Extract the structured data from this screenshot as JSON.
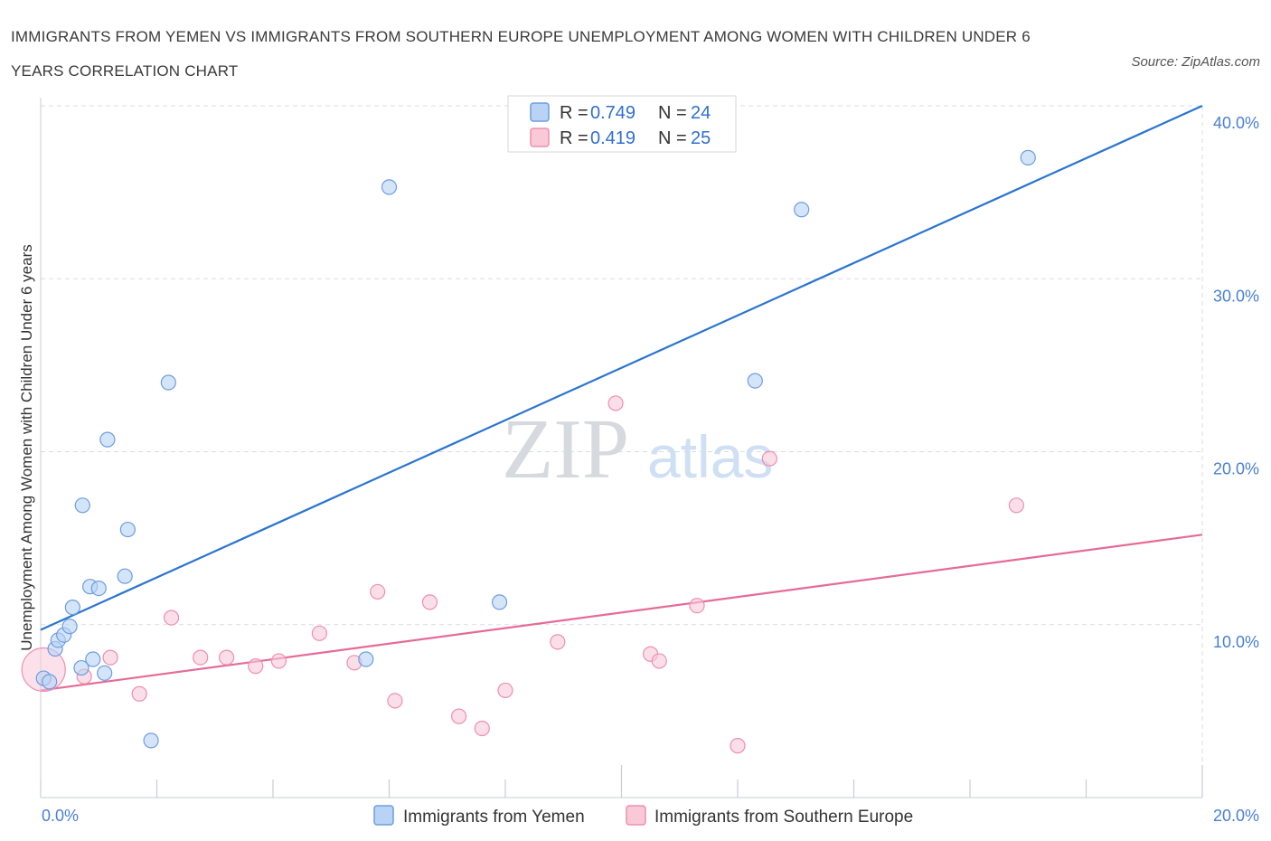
{
  "title": "IMMIGRANTS FROM YEMEN VS IMMIGRANTS FROM SOUTHERN EUROPE UNEMPLOYMENT AMONG WOMEN WITH CHILDREN UNDER 6 YEARS CORRELATION CHART",
  "source": "Source: ZipAtlas.com",
  "watermark": {
    "zip": "ZIP",
    "atlas": "atlas"
  },
  "legend": {
    "r_label": "R =",
    "n_label": "N =",
    "rows": [
      {
        "r": "0.749",
        "n": "24"
      },
      {
        "r": "0.419",
        "n": "25"
      }
    ]
  },
  "colors": {
    "yemen_fill": "#b9d3f5",
    "yemen_stroke": "#6d9de0",
    "yemen_line": "#2a74d0",
    "seu_fill": "#f9c9d8",
    "seu_stroke": "#ee8fae",
    "seu_line": "#e56b97",
    "grid": "#d9dde3",
    "tick_label": "#4a7fd4"
  },
  "chart_data": {
    "type": "scatter",
    "title": "IMMIGRANTS FROM YEMEN VS IMMIGRANTS FROM SOUTHERN EUROPE UNEMPLOYMENT AMONG WOMEN WITH CHILDREN UNDER 6 YEARS CORRELATION CHART",
    "xlabel": "",
    "ylabel": "Unemployment Among Women with Children Under 6 years",
    "xlim": [
      0,
      20
    ],
    "ylim": [
      0,
      40
    ],
    "x_tick_labels": [
      "0.0%",
      "20.0%"
    ],
    "y_tick_labels": [
      "10.0%",
      "20.0%",
      "30.0%",
      "40.0%"
    ],
    "y_ticks": [
      10,
      20,
      30,
      40
    ],
    "grid": true,
    "legend_position": "top-center",
    "series": [
      {
        "name": "Immigrants from Yemen",
        "color": "#6d9de0",
        "points": [
          [
            0.05,
            6.9
          ],
          [
            0.15,
            6.7
          ],
          [
            0.25,
            8.6
          ],
          [
            0.3,
            9.1
          ],
          [
            0.4,
            9.4
          ],
          [
            0.5,
            9.9
          ],
          [
            0.55,
            11.0
          ],
          [
            0.7,
            7.5
          ],
          [
            0.72,
            16.9
          ],
          [
            0.85,
            12.2
          ],
          [
            0.9,
            8.0
          ],
          [
            1.0,
            12.1
          ],
          [
            1.1,
            7.2
          ],
          [
            1.15,
            20.7
          ],
          [
            1.45,
            12.8
          ],
          [
            1.5,
            15.5
          ],
          [
            1.9,
            3.3
          ],
          [
            2.2,
            24.0
          ],
          [
            5.6,
            8.0
          ],
          [
            6.0,
            35.3
          ],
          [
            7.9,
            11.3
          ],
          [
            12.3,
            24.1
          ],
          [
            13.1,
            34.0
          ],
          [
            17.0,
            37.0
          ]
        ],
        "trend": {
          "x": [
            0,
            20
          ],
          "y": [
            9.7,
            40.0
          ]
        }
      },
      {
        "name": "Immigrants from Southern Europe",
        "color": "#ee8fae",
        "points": [
          [
            0.05,
            7.4
          ],
          [
            0.75,
            7.0
          ],
          [
            1.2,
            8.1
          ],
          [
            1.7,
            6.0
          ],
          [
            2.25,
            10.4
          ],
          [
            2.75,
            8.1
          ],
          [
            3.2,
            8.1
          ],
          [
            3.7,
            7.6
          ],
          [
            4.1,
            7.9
          ],
          [
            4.8,
            9.5
          ],
          [
            5.4,
            7.8
          ],
          [
            5.8,
            11.9
          ],
          [
            6.1,
            5.6
          ],
          [
            6.7,
            11.3
          ],
          [
            7.2,
            4.7
          ],
          [
            7.6,
            4.0
          ],
          [
            8.0,
            6.2
          ],
          [
            8.9,
            9.0
          ],
          [
            9.9,
            22.8
          ],
          [
            10.5,
            8.3
          ],
          [
            10.65,
            7.9
          ],
          [
            11.3,
            11.1
          ],
          [
            12.0,
            3.0
          ],
          [
            12.55,
            19.6
          ],
          [
            16.8,
            16.9
          ]
        ],
        "trend": {
          "x": [
            0,
            20
          ],
          "y": [
            6.2,
            15.2
          ]
        }
      }
    ]
  }
}
